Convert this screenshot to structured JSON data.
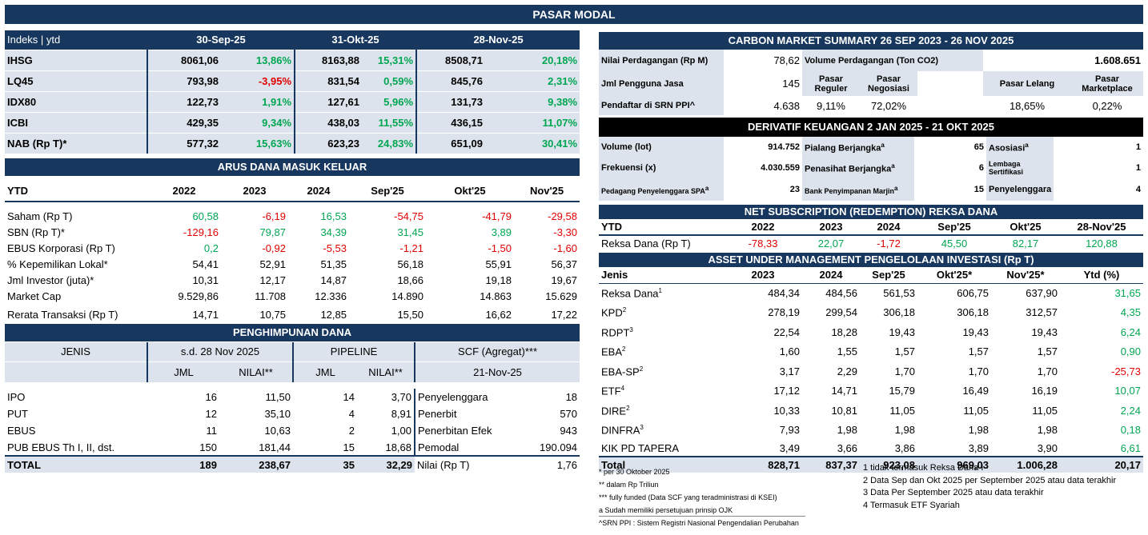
{
  "title": "PASAR MODAL",
  "indices": {
    "label": "Indeks | ytd",
    "dates": [
      "30-Sep-25",
      "31-Okt-25",
      "28-Nov-25"
    ],
    "rows": [
      {
        "name": "IHSG",
        "v1": "8061,06",
        "p1": "13,86%",
        "v2": "8163,88",
        "p2": "15,31%",
        "v3": "8508,71",
        "p3": "20,18%"
      },
      {
        "name": "LQ45",
        "v1": "793,98",
        "p1": "-3,95%",
        "v2": "831,54",
        "p2": "0,59%",
        "v3": "845,76",
        "p3": "2,31%"
      },
      {
        "name": "IDX80",
        "v1": "122,73",
        "p1": "1,91%",
        "v2": "127,61",
        "p2": "5,96%",
        "v3": "131,73",
        "p3": "9,38%"
      },
      {
        "name": "ICBI",
        "v1": "429,35",
        "p1": "9,34%",
        "v2": "438,03",
        "p2": "11,55%",
        "v3": "436,15",
        "p3": "11,07%"
      },
      {
        "name": "NAB (Rp T)*",
        "v1": "577,32",
        "p1": "15,63%",
        "v2": "623,23",
        "p2": "24,83%",
        "v3": "651,09",
        "p3": "30,41%"
      }
    ]
  },
  "flows": {
    "title": "ARUS DANA MASUK KELUAR",
    "headers": [
      "YTD",
      "2022",
      "2023",
      "2024",
      "Sep'25",
      "Okt'25",
      "Nov'25"
    ],
    "rows": [
      {
        "label": "Saham (Rp T)",
        "vals": [
          "60,58",
          "-6,19",
          "16,53",
          "-54,75",
          "-41,79",
          "-29,58"
        ]
      },
      {
        "label": "SBN (Rp T)*",
        "vals": [
          "-129,16",
          "79,87",
          "34,39",
          "31,45",
          "3,89",
          "-3,30"
        ]
      },
      {
        "label": "EBUS Korporasi (Rp T)",
        "vals": [
          "0,2",
          "-0,92",
          "-5,53",
          "-1,21",
          "-1,50",
          "-1,60"
        ]
      },
      {
        "label": "% Kepemilikan Lokal*",
        "vals": [
          "54,41",
          "52,91",
          "51,35",
          "56,18",
          "55,91",
          "56,37"
        ]
      },
      {
        "label": "Jml Investor (juta)*",
        "vals": [
          "10,31",
          "12,17",
          "14,87",
          "18,66",
          "19,18",
          "19,67"
        ]
      },
      {
        "label": "Market Cap",
        "vals": [
          "9.529,86",
          "11.708",
          "12.336",
          "14.890",
          "14.863",
          "15.629"
        ]
      },
      {
        "label": "Rerata Transaksi (Rp T)",
        "vals": [
          "14,71",
          "10,75",
          "12,85",
          "15,50",
          "16,62",
          "17,22"
        ]
      }
    ]
  },
  "funding": {
    "title": "PENGHIMPUNAN DANA",
    "h_jenis": "JENIS",
    "h_sd": "s.d. 28 Nov 2025",
    "h_pipeline": "PIPELINE",
    "h_scf": "SCF (Agregat)***",
    "h_jml": "JML",
    "h_nilai": "NILAI**",
    "h_jml2": "JML",
    "h_nilai2": "NILAI**",
    "h_date": "21-Nov-25",
    "rows": [
      {
        "jenis": "IPO",
        "jml": "16",
        "nilai": "11,50",
        "pjml": "14",
        "pnilai": "3,70",
        "scf_label": "Penyelenggara",
        "scf_val": "18"
      },
      {
        "jenis": "PUT",
        "jml": "12",
        "nilai": "35,10",
        "pjml": "4",
        "pnilai": "8,91",
        "scf_label": "Penerbit",
        "scf_val": "570"
      },
      {
        "jenis": "EBUS",
        "jml": "11",
        "nilai": "10,63",
        "pjml": "2",
        "pnilai": "1,00",
        "scf_label": "Penerbitan Efek",
        "scf_val": "943"
      },
      {
        "jenis": "PUB EBUS Th I, II, dst.",
        "jml": "150",
        "nilai": "181,44",
        "pjml": "15",
        "pnilai": "18,68",
        "scf_label": "Pemodal",
        "scf_val": "190.094"
      }
    ],
    "total": {
      "jenis": "TOTAL",
      "jml": "189",
      "nilai": "238,67",
      "pjml": "35",
      "pnilai": "32,29",
      "scf_label": "Nilai (Rp T)",
      "scf_val": "1,76"
    }
  },
  "carbon": {
    "title": "CARBON MARKET SUMMARY 26 SEP 2023 - 26 NOV 2025",
    "nilai_label": "Nilai Perdagangan (Rp M)",
    "nilai_val": "78,62",
    "volume_label": "Volume Perdagangan (Ton CO2)",
    "volume_val": "1.608.651",
    "pengguna_label": "Jml Pengguna Jasa",
    "pengguna_val": "145",
    "pasar_reguler": "Pasar Reguler",
    "pasar_negosiasi": "Pasar Negosiasi",
    "pasar_lelang": "Pasar Lelang",
    "pasar_marketplace": "Pasar Marketplace",
    "pendaftar_label": "Pendaftar di SRN PPI^",
    "pendaftar_val": "4.638",
    "reguler_pct": "9,11%",
    "negosiasi_pct": "72,02%",
    "lelang_pct": "18,65%",
    "marketplace_pct": "0,22%"
  },
  "derivatif": {
    "title": "DERIVATIF KEUANGAN 2 JAN 2025 - 21 OKT 2025",
    "volume_label": "Volume (lot)",
    "volume_val": "914.752",
    "frekuensi_label": "Frekuensi (x)",
    "frekuensi_val": "4.030.559",
    "pedagang_label": "Pedagang Penyelenggara SPA",
    "pedagang_val": "23",
    "pialang_label": "Pialang Berjangka",
    "pialang_val": "65",
    "penasihat_label": "Penasihat Berjangka",
    "penasihat_val": "6",
    "bank_label": "Bank Penyimpanan Marjin",
    "bank_val": "15",
    "asosiasi_label": "Asosiasi",
    "asosiasi_val": "1",
    "lembaga_label": "Lembaga Sertifikasi",
    "lembaga_val": "1",
    "penyelenggara_label": "Penyelenggara",
    "penyelenggara_val": "4",
    "sup_a": "a"
  },
  "netsub": {
    "title": "NET SUBSCRIPTION (REDEMPTION) REKSA DANA",
    "headers": [
      "YTD",
      "2022",
      "2023",
      "2024",
      "Sep'25",
      "Okt'25",
      "28-Nov'25"
    ],
    "label": "Reksa Dana (Rp T)",
    "vals": [
      "-78,33",
      "22,07",
      "-1,72",
      "45,50",
      "82,17",
      "120,88"
    ]
  },
  "aum": {
    "title": "ASSET UNDER MANAGEMENT PENGELOLAAN INVESTASI (Rp T)",
    "headers": [
      "Jenis",
      "2023",
      "2024",
      "Sep'25",
      "Okt'25*",
      "Nov'25*",
      "Ytd (%)"
    ],
    "rows": [
      {
        "label": "Reksa Dana",
        "sup": "1",
        "vals": [
          "484,34",
          "484,56",
          "561,53",
          "606,75",
          "637,90",
          "31,65"
        ]
      },
      {
        "label": "KPD",
        "sup": "2",
        "vals": [
          "278,19",
          "299,54",
          "306,18",
          "306,18",
          "312,57",
          "4,35"
        ]
      },
      {
        "label": "RDPT",
        "sup": "3",
        "vals": [
          "22,54",
          "18,28",
          "19,43",
          "19,43",
          "19,43",
          "6,24"
        ]
      },
      {
        "label": "EBA",
        "sup": "2",
        "vals": [
          "1,60",
          "1,55",
          "1,57",
          "1,57",
          "1,57",
          "0,90"
        ]
      },
      {
        "label": "EBA-SP",
        "sup": "2",
        "vals": [
          "3,17",
          "2,29",
          "1,70",
          "1,70",
          "1,70",
          "-25,73"
        ]
      },
      {
        "label": "ETF",
        "sup": "4",
        "vals": [
          "17,12",
          "14,71",
          "15,79",
          "16,49",
          "16,19",
          "10,07"
        ]
      },
      {
        "label": "DIRE",
        "sup": "2",
        "vals": [
          "10,33",
          "10,81",
          "11,05",
          "11,05",
          "11,05",
          "2,24"
        ]
      },
      {
        "label": "DINFRA",
        "sup": "3",
        "vals": [
          "7,93",
          "1,98",
          "1,98",
          "1,98",
          "1,98",
          "0,18"
        ]
      },
      {
        "label": "KIK PD TAPERA",
        "sup": "",
        "vals": [
          "3,49",
          "3,66",
          "3,86",
          "3,89",
          "3,90",
          "6,61"
        ]
      }
    ],
    "total": {
      "label": "Total",
      "vals": [
        "828,71",
        "837,37",
        "923,08",
        "969,03",
        "1.006,28",
        "20,17"
      ]
    }
  },
  "notes_left": [
    "* per 30 Oktober 2025",
    "**  dalam Rp Triliun",
    "*** fully funded (Data SCF yang teradministrasi di KSEI)",
    "a Sudah memiliki persetujuan prinsip OJK",
    "^SRN PPI : Sistem Registri Nasional Pengendalian Perubahan"
  ],
  "notes_right": [
    "1 tidak termasuk Reksa Dana I",
    "2 Data Sep dan Okt 2025 per September 2025 atau data terakhir",
    "3 Data Per September 2025 atau data terakhir",
    "4 Termasuk ETF Syariah"
  ],
  "colors": {
    "header_bg": "#17375e",
    "row_bg": "#dce3ec",
    "green": "#00a651",
    "red": "#e00000"
  }
}
